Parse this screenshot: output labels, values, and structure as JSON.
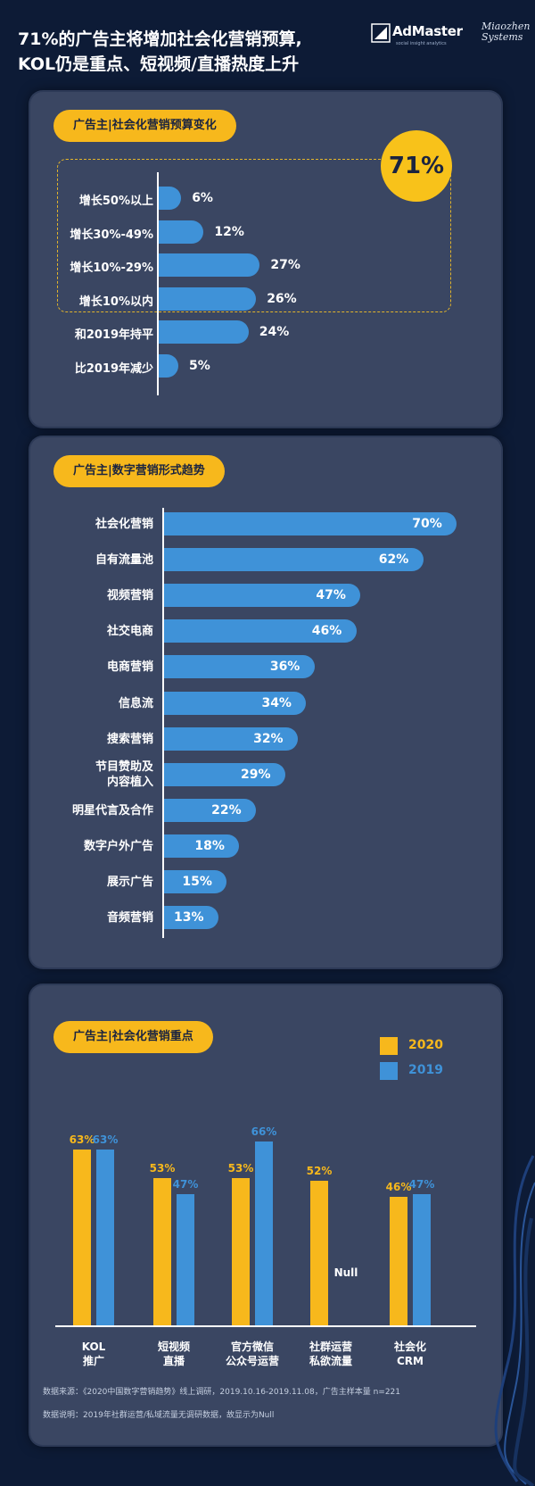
{
  "header": {
    "title_line1": "71%的广告主将增加社会化营销预算,",
    "title_line2": "KOL仍是重点、短视频/直播热度上升",
    "logo_admaster": "AdMaster",
    "logo_admaster_tagline": "social insight analytics",
    "logo_miaozhen_line1": "Miaozhen",
    "logo_miaozhen_line2": "Systems"
  },
  "colors": {
    "accent_yellow": "#f7b81c",
    "bar_blue": "#3f92d8",
    "panel": "#3a4662",
    "background": "#0d1b36"
  },
  "chart_data": [
    {
      "type": "bar",
      "orientation": "horizontal",
      "title": "广告主|社会化营销预算变化",
      "highlight_total": "71%",
      "categories": [
        "增长50%以上",
        "增长30%-49%",
        "增长10%-29%",
        "增长10%以内",
        "和2019年持平",
        "比2019年减少"
      ],
      "values": [
        6,
        12,
        27,
        26,
        24,
        5
      ],
      "labels": [
        "6%",
        "12%",
        "27%",
        "26%",
        "24%",
        "5%"
      ]
    },
    {
      "type": "bar",
      "orientation": "horizontal",
      "title": "广告主|数字营销形式趋势",
      "categories": [
        "社会化营销",
        "自有流量池",
        "视频营销",
        "社交电商",
        "电商营销",
        "信息流",
        "搜索营销",
        "节目赞助及\n内容植入",
        "明星代言及合作",
        "数字户外广告",
        "展示广告",
        "音频营销"
      ],
      "values": [
        70,
        62,
        47,
        46,
        36,
        34,
        32,
        29,
        22,
        18,
        15,
        13
      ],
      "labels": [
        "70%",
        "62%",
        "47%",
        "46%",
        "36%",
        "34%",
        "32%",
        "29%",
        "22%",
        "18%",
        "15%",
        "13%"
      ]
    },
    {
      "type": "bar",
      "orientation": "vertical",
      "title": "广告主|社会化营销重点",
      "categories": [
        "KOL\n推广",
        "短视频\n直播",
        "官方微信\n公众号运营",
        "社群运营\n私欲流量",
        "社会化\nCRM"
      ],
      "series": [
        {
          "name": "2020",
          "color": "#f7b81c",
          "values": [
            63,
            53,
            53,
            52,
            46
          ],
          "labels": [
            "63%",
            "53%",
            "53%",
            "52%",
            "46%"
          ]
        },
        {
          "name": "2019",
          "color": "#3f92d8",
          "values": [
            63,
            47,
            66,
            null,
            47
          ],
          "labels": [
            "63%",
            "47%",
            "66%",
            "Null",
            "47%"
          ]
        }
      ]
    }
  ],
  "footer": {
    "source": "数据来源：《2020中国数字营销趋势》线上调研，2019.10.16-2019.11.08，广告主样本量 n=221",
    "note": "数据说明：2019年社群运营/私域流量无调研数据，故显示为Null"
  }
}
